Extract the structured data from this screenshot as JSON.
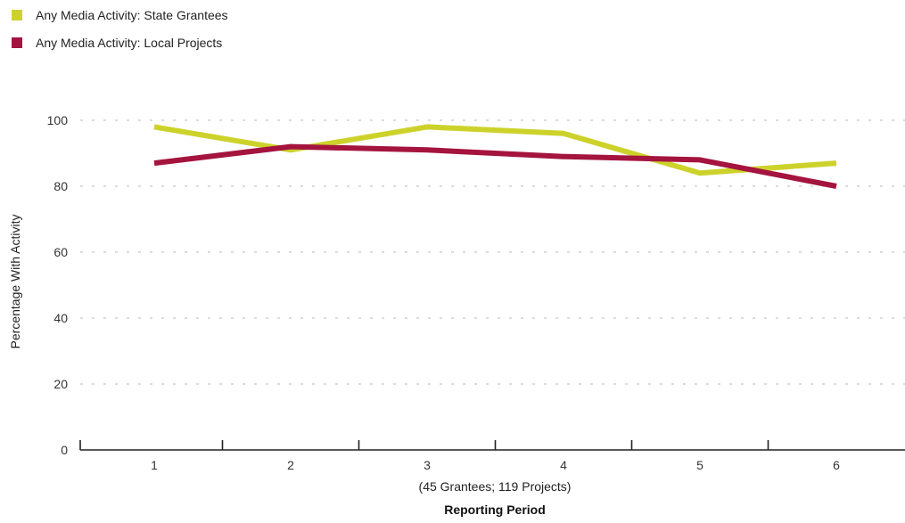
{
  "chart_data": {
    "type": "line",
    "x": [
      1,
      2,
      3,
      4,
      5,
      6
    ],
    "x_tick_labels": [
      "1",
      "2",
      "3",
      "4",
      "5",
      "6"
    ],
    "series": [
      {
        "name": "Any Media Activity: State Grantees",
        "color": "#cdd22b",
        "values": [
          98,
          91,
          98,
          96,
          84,
          87
        ]
      },
      {
        "name": "Any Media Activity: Local Projects",
        "color": "#a4143e",
        "values": [
          87,
          92,
          91,
          89,
          88,
          80
        ]
      }
    ],
    "ylim": [
      0,
      100
    ],
    "y_ticks": [
      0,
      20,
      40,
      60,
      80,
      100
    ],
    "y_tick_labels": [
      "0",
      "20",
      "40",
      "60",
      "80",
      "100"
    ],
    "ylabel": "Percentage With Activity",
    "xlabel_note": "(45 Grantees; 119 Projects)",
    "xlabel": "Reporting Period",
    "grid": true,
    "legend_position": "top-left"
  }
}
